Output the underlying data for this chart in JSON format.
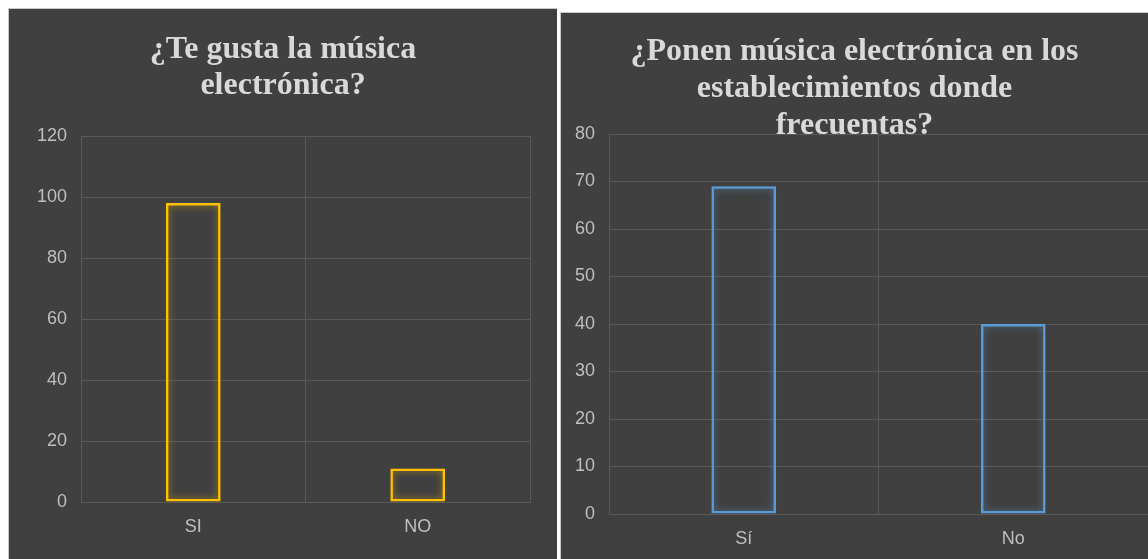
{
  "chart_data": [
    {
      "type": "bar",
      "title": "¿Te gusta la música electrónica?",
      "categories": [
        "SI",
        "NO"
      ],
      "values": [
        98,
        11
      ],
      "color": "#ffc000",
      "ylim": [
        0,
        120
      ],
      "yticks": [
        0,
        20,
        40,
        60,
        80,
        100,
        120
      ],
      "grid": true
    },
    {
      "type": "bar",
      "title": "¿Ponen música electrónica en los establecimientos donde frecuentas?",
      "categories": [
        "Sí",
        "No"
      ],
      "values": [
        69,
        40
      ],
      "color": "#5b9bd5",
      "ylim": [
        0,
        80
      ],
      "yticks": [
        0,
        10,
        20,
        30,
        40,
        50,
        60,
        70,
        80
      ],
      "grid": true
    }
  ]
}
